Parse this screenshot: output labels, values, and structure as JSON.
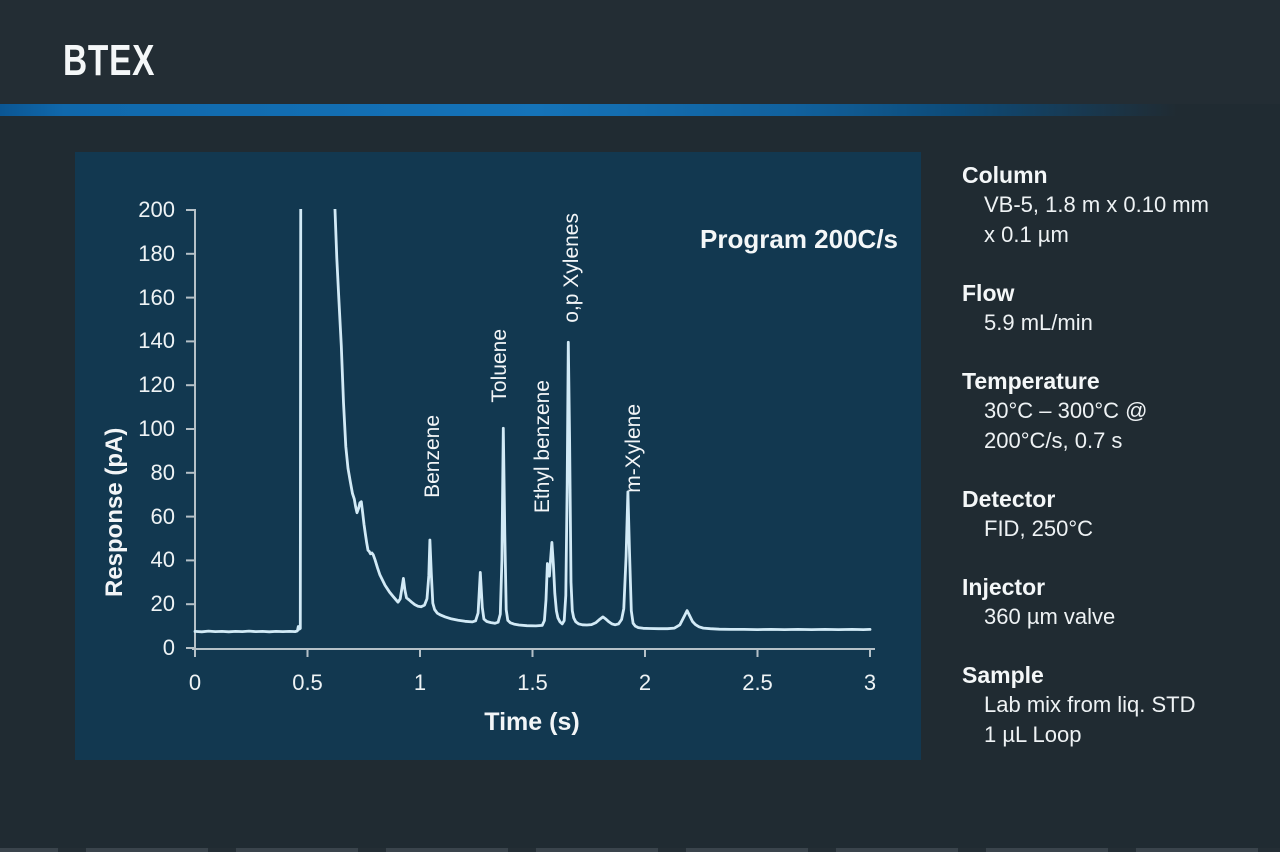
{
  "header": {
    "title": "BTEX"
  },
  "chart_data": {
    "type": "line",
    "annotation": "Program 200C/s",
    "xlabel": "Time (s)",
    "ylabel": "Response (pA)",
    "xlim": [
      0,
      3
    ],
    "ylim": [
      0,
      200
    ],
    "x_ticks": [
      0,
      0.5,
      1,
      1.5,
      2,
      2.5,
      3
    ],
    "x_tick_labels": [
      "0",
      "0.5",
      "1",
      "1.5",
      "2",
      "2.5",
      "3"
    ],
    "y_ticks": [
      0,
      20,
      40,
      60,
      80,
      100,
      120,
      140,
      160,
      180,
      200
    ],
    "grid": false,
    "legend": "none",
    "panel_color": "#123850",
    "line_color": "#d2eaf6",
    "axis_color": "#b5c1c8",
    "baseline_pA": 8,
    "solvent_peak": {
      "time_s": 0.5,
      "height_pA": 200,
      "note": "off-scale, clipped at top of axis"
    },
    "peaks": [
      {
        "name": "Benzene",
        "time_s": 1.04,
        "height_pA": 49,
        "label_t": 1.058,
        "label_v": 68.5
      },
      {
        "name": "Toluene",
        "time_s": 1.37,
        "height_pA": 100,
        "label_t": 1.356,
        "label_v": 112.3
      },
      {
        "name": "Ethyl benzene",
        "time_s": 1.59,
        "height_pA": 48,
        "label_t": 1.547,
        "label_v": 61.6
      },
      {
        "name": "o,p Xylenes",
        "time_s": 1.66,
        "height_pA": 140,
        "label_t": 1.676,
        "label_v": 148.4
      },
      {
        "name": "m-Xylene",
        "time_s": 1.92,
        "height_pA": 71,
        "label_t": 1.951,
        "label_v": 70.8
      }
    ],
    "series": [
      {
        "name": "trace",
        "points": [
          [
            0.0,
            7.6
          ],
          [
            0.03,
            7.4
          ],
          [
            0.06,
            7.7
          ],
          [
            0.09,
            7.5
          ],
          [
            0.12,
            7.6
          ],
          [
            0.15,
            7.4
          ],
          [
            0.18,
            7.6
          ],
          [
            0.21,
            7.5
          ],
          [
            0.24,
            7.7
          ],
          [
            0.27,
            7.5
          ],
          [
            0.3,
            7.6
          ],
          [
            0.33,
            7.4
          ],
          [
            0.36,
            7.6
          ],
          [
            0.39,
            7.5
          ],
          [
            0.42,
            7.6
          ],
          [
            0.445,
            7.5
          ],
          [
            0.455,
            7.8
          ],
          [
            0.459,
            9.8
          ],
          [
            0.463,
            8.6
          ],
          [
            0.468,
            8.9
          ],
          [
            0.47,
            232
          ],
          [
            0.612,
            232
          ],
          [
            0.622,
            200
          ],
          [
            0.63,
            178
          ],
          [
            0.64,
            158
          ],
          [
            0.65,
            138
          ],
          [
            0.66,
            112
          ],
          [
            0.67,
            92
          ],
          [
            0.68,
            82
          ],
          [
            0.69,
            76
          ],
          [
            0.7,
            70.5
          ],
          [
            0.708,
            68.0
          ],
          [
            0.714,
            64.5
          ],
          [
            0.72,
            61.8
          ],
          [
            0.727,
            63.8
          ],
          [
            0.733,
            66.3
          ],
          [
            0.739,
            66.8
          ],
          [
            0.745,
            62.0
          ],
          [
            0.751,
            56.5
          ],
          [
            0.757,
            52.3
          ],
          [
            0.763,
            48.0
          ],
          [
            0.769,
            44.6
          ],
          [
            0.774,
            44.2
          ],
          [
            0.78,
            43.0
          ],
          [
            0.786,
            43.4
          ],
          [
            0.792,
            42.6
          ],
          [
            0.8,
            40.3
          ],
          [
            0.811,
            36.6
          ],
          [
            0.822,
            33.4
          ],
          [
            0.845,
            28.6
          ],
          [
            0.865,
            25.5
          ],
          [
            0.882,
            23.4
          ],
          [
            0.902,
            20.9
          ],
          [
            0.912,
            22.4
          ],
          [
            0.919,
            27.0
          ],
          [
            0.926,
            31.8
          ],
          [
            0.933,
            26.5
          ],
          [
            0.94,
            22.9
          ],
          [
            0.952,
            21.9
          ],
          [
            0.963,
            20.9
          ],
          [
            0.977,
            19.8
          ],
          [
            0.991,
            19.1
          ],
          [
            1.005,
            18.8
          ],
          [
            1.02,
            19.6
          ],
          [
            1.031,
            22.5
          ],
          [
            1.039,
            33.0
          ],
          [
            1.044,
            49.3
          ],
          [
            1.05,
            34.0
          ],
          [
            1.057,
            20.5
          ],
          [
            1.065,
            17.6
          ],
          [
            1.077,
            15.9
          ],
          [
            1.092,
            15.0
          ],
          [
            1.112,
            14.2
          ],
          [
            1.14,
            13.3
          ],
          [
            1.17,
            12.7
          ],
          [
            1.2,
            12.2
          ],
          [
            1.232,
            11.9
          ],
          [
            1.247,
            12.4
          ],
          [
            1.258,
            16.0
          ],
          [
            1.268,
            34.5
          ],
          [
            1.277,
            18.5
          ],
          [
            1.284,
            13.2
          ],
          [
            1.297,
            12.1
          ],
          [
            1.315,
            11.6
          ],
          [
            1.333,
            11.3
          ],
          [
            1.347,
            11.8
          ],
          [
            1.357,
            15.5
          ],
          [
            1.364,
            40.0
          ],
          [
            1.37,
            100.3
          ],
          [
            1.377,
            52.0
          ],
          [
            1.383,
            17.5
          ],
          [
            1.39,
            12.6
          ],
          [
            1.402,
            11.5
          ],
          [
            1.418,
            10.9
          ],
          [
            1.44,
            10.5
          ],
          [
            1.475,
            10.2
          ],
          [
            1.515,
            10.1
          ],
          [
            1.543,
            10.3
          ],
          [
            1.553,
            12.5
          ],
          [
            1.56,
            22.0
          ],
          [
            1.566,
            38.6
          ],
          [
            1.571,
            34.5
          ],
          [
            1.575,
            32.8
          ],
          [
            1.58,
            40.0
          ],
          [
            1.586,
            48.2
          ],
          [
            1.593,
            38.0
          ],
          [
            1.599,
            25.0
          ],
          [
            1.606,
            17.0
          ],
          [
            1.613,
            13.8
          ],
          [
            1.622,
            11.9
          ],
          [
            1.632,
            11.0
          ],
          [
            1.641,
            12.5
          ],
          [
            1.648,
            24.0
          ],
          [
            1.654,
            75.0
          ],
          [
            1.659,
            139.6
          ],
          [
            1.665,
            95.0
          ],
          [
            1.671,
            30.0
          ],
          [
            1.677,
            17.0
          ],
          [
            1.683,
            13.8
          ],
          [
            1.692,
            12.0
          ],
          [
            1.705,
            11.0
          ],
          [
            1.722,
            10.6
          ],
          [
            1.742,
            10.5
          ],
          [
            1.762,
            10.7
          ],
          [
            1.782,
            11.6
          ],
          [
            1.8,
            13.2
          ],
          [
            1.813,
            14.2
          ],
          [
            1.824,
            13.4
          ],
          [
            1.84,
            11.9
          ],
          [
            1.853,
            11.0
          ],
          [
            1.867,
            10.6
          ],
          [
            1.882,
            11.0
          ],
          [
            1.896,
            13.0
          ],
          [
            1.906,
            18.0
          ],
          [
            1.916,
            42.0
          ],
          [
            1.924,
            71.3
          ],
          [
            1.931,
            44.0
          ],
          [
            1.939,
            17.0
          ],
          [
            1.947,
            11.3
          ],
          [
            1.957,
            10.0
          ],
          [
            1.97,
            9.3
          ],
          [
            1.992,
            9.0
          ],
          [
            2.02,
            8.9
          ],
          [
            2.06,
            8.8
          ],
          [
            2.1,
            8.8
          ],
          [
            2.131,
            9.1
          ],
          [
            2.155,
            10.6
          ],
          [
            2.175,
            14.6
          ],
          [
            2.187,
            17.1
          ],
          [
            2.199,
            14.6
          ],
          [
            2.211,
            12.1
          ],
          [
            2.224,
            10.7
          ],
          [
            2.24,
            9.7
          ],
          [
            2.259,
            9.1
          ],
          [
            2.29,
            8.8
          ],
          [
            2.33,
            8.6
          ],
          [
            2.38,
            8.5
          ],
          [
            2.44,
            8.5
          ],
          [
            2.5,
            8.4
          ],
          [
            2.56,
            8.5
          ],
          [
            2.62,
            8.4
          ],
          [
            2.68,
            8.5
          ],
          [
            2.74,
            8.4
          ],
          [
            2.8,
            8.5
          ],
          [
            2.86,
            8.4
          ],
          [
            2.92,
            8.5
          ],
          [
            2.97,
            8.4
          ],
          [
            3.0,
            8.5
          ]
        ]
      }
    ]
  },
  "sidebar": {
    "sections": [
      {
        "heading": "Column",
        "lines": [
          "VB-5, 1.8 m x 0.10 mm",
          "x 0.1 µm"
        ]
      },
      {
        "heading": "Flow",
        "lines": [
          "5.9 mL/min"
        ]
      },
      {
        "heading": "Temperature",
        "lines": [
          "30°C – 300°C @",
          "200°C/s, 0.7 s"
        ]
      },
      {
        "heading": "Detector",
        "lines": [
          "FID, 250°C"
        ]
      },
      {
        "heading": "Injector",
        "lines": [
          "360 µm valve"
        ]
      },
      {
        "heading": "Sample",
        "lines": [
          "Lab mix from liq. STD",
          "1 µL Loop"
        ]
      }
    ]
  }
}
